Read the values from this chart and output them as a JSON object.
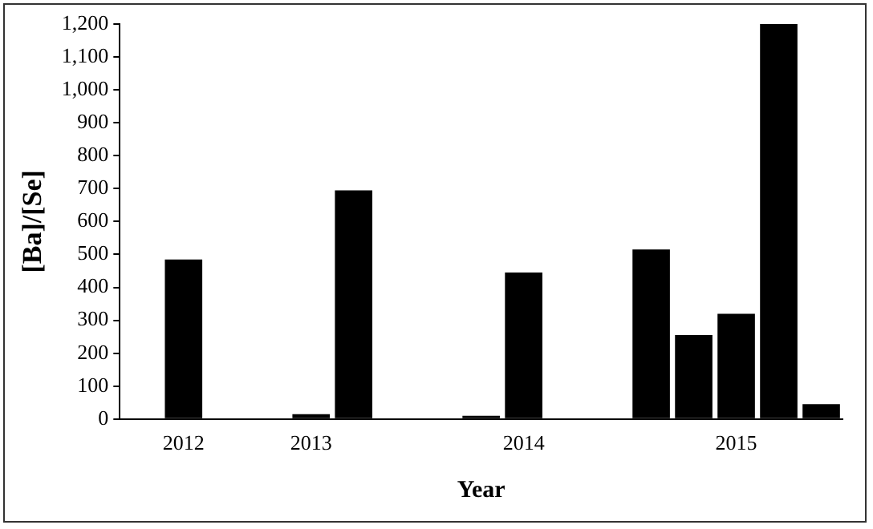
{
  "chart_data": {
    "type": "bar",
    "xlabel": "Year",
    "ylabel": "[Ba]/[Se]",
    "categories": [
      null,
      "2012",
      null,
      null,
      "2013",
      null,
      null,
      null,
      null,
      "2014",
      null,
      null,
      null,
      null,
      "2015",
      null,
      null
    ],
    "values": [
      null,
      485,
      null,
      null,
      15,
      695,
      null,
      null,
      10,
      445,
      null,
      null,
      515,
      255,
      320,
      1200,
      45
    ],
    "color": "#000000",
    "ylim": [
      0,
      1200
    ],
    "yticks": [
      0,
      100,
      200,
      300,
      400,
      500,
      600,
      700,
      800,
      900,
      {
        "value": 1000,
        "label": "1,000"
      },
      {
        "value": 1100,
        "label": "1,100"
      },
      {
        "value": 1200,
        "label": "1,200"
      }
    ],
    "grid": false,
    "legend": false
  }
}
